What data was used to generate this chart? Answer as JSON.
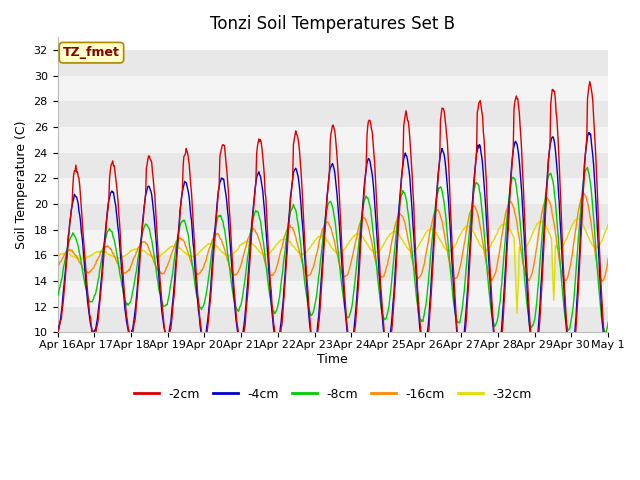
{
  "title": "Tonzi Soil Temperatures Set B",
  "xlabel": "Time",
  "ylabel": "Soil Temperature (C)",
  "ylim": [
    10,
    33
  ],
  "yticks": [
    10,
    12,
    14,
    16,
    18,
    20,
    22,
    24,
    26,
    28,
    30,
    32
  ],
  "xtick_labels": [
    "Apr 16",
    "Apr 17",
    "Apr 18",
    "Apr 19",
    "Apr 20",
    "Apr 21",
    "Apr 22",
    "Apr 23",
    "Apr 24",
    "Apr 25",
    "Apr 26",
    "Apr 27",
    "Apr 28",
    "Apr 29",
    "Apr 30",
    "May 1"
  ],
  "series_colors": [
    "#dd0000",
    "#0000cc",
    "#00cc00",
    "#ff8800",
    "#dddd00"
  ],
  "series_labels": [
    "-2cm",
    "-4cm",
    "-8cm",
    "-16cm",
    "-32cm"
  ],
  "annotation_text": "TZ_fmet",
  "annotation_bg": "#ffffcc",
  "annotation_fg": "#880000",
  "title_fontsize": 12,
  "label_fontsize": 9,
  "tick_fontsize": 8,
  "legend_fontsize": 9
}
